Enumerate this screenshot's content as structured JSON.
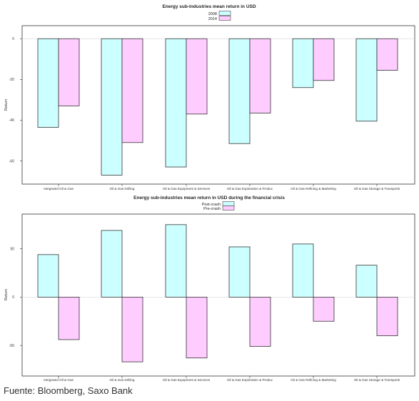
{
  "source_note": "Fuente: Bloomberg, Saxo Bank",
  "chart_data": [
    {
      "type": "bar",
      "title": "Energy sub-industries mean return in USD",
      "ylabel": "Return",
      "xlabel": "",
      "ylim": [
        -70,
        5
      ],
      "yticks": [
        0,
        -20,
        -40,
        -60
      ],
      "grid": false,
      "legend_position": "top",
      "categories": [
        "Integrated Oil & Gas",
        "Oil & Gas Drilling",
        "Oil & Gas Equipment & Services",
        "Oil & Gas Exploration & Produc",
        "Oil & Gas Refining & Marketing",
        "Oil & Gas Storage & Transports"
      ],
      "series": [
        {
          "name": "2008",
          "color": "#ccffff",
          "values": [
            -43.5,
            -67,
            -63,
            -51.5,
            -24,
            -40.5
          ]
        },
        {
          "name": "2014",
          "color": "#ffccff",
          "values": [
            -33,
            -51,
            -37,
            -36.5,
            -20.5,
            -15.5
          ]
        }
      ]
    },
    {
      "type": "bar",
      "title": "Energy sub-industries mean return in USD during the financial crisis",
      "ylabel": "Return",
      "xlabel": "",
      "ylim": [
        -78,
        83
      ],
      "yticks": [
        50,
        0,
        -50
      ],
      "grid": false,
      "legend_position": "top",
      "categories": [
        "Integrated Oil & Gas",
        "Oil & Gas Drilling",
        "Oil & Gas Equipment & Services",
        "Oil & Gas Exploration & Produc",
        "Oil & Gas Refining & Marketing",
        "Oil & Gas Storage & Transports"
      ],
      "series": [
        {
          "name": "Post-crash",
          "color": "#ccffff",
          "values": [
            44,
            69,
            75,
            52,
            55,
            33
          ]
        },
        {
          "name": "Pre-crash",
          "color": "#ffccff",
          "values": [
            -44,
            -67,
            -63,
            -51,
            -25,
            -40
          ]
        }
      ]
    }
  ]
}
